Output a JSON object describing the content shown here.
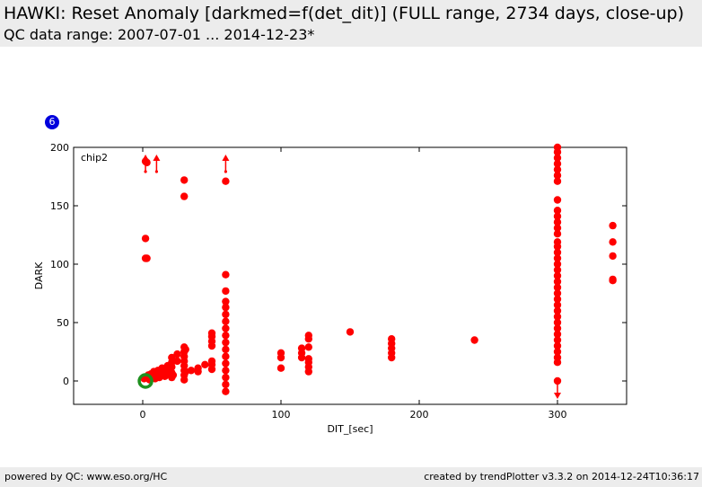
{
  "header": {
    "title": "HAWKI: Reset Anomaly [darkmed=f(det_dit)] (FULL range, 2734 days, close-up)",
    "subtitle": "QC data range: 2007-07-01 ... 2014-12-23*"
  },
  "badge": {
    "label": "6",
    "color": "#0000dd"
  },
  "footer": {
    "left": "powered by QC: www.eso.org/HC",
    "right": "created by trendPlotter v3.3.2 on 2014-12-24T10:36:17"
  },
  "chart_data": {
    "type": "scatter",
    "title": "",
    "xlabel": "DIT_[sec]",
    "ylabel": "DARK",
    "xlim": [
      -50,
      350
    ],
    "ylim": [
      -20,
      200
    ],
    "xticks": [
      0,
      100,
      200,
      300
    ],
    "yticks": [
      0,
      50,
      100,
      150,
      200
    ],
    "grid": false,
    "panel_label": "chip2",
    "colors": {
      "points": "#ff0000",
      "reference": "#1e8f1e"
    },
    "series": [
      {
        "points": [
          [
            2,
            122
          ],
          [
            2,
            105
          ],
          [
            3,
            105
          ],
          [
            2,
            188
          ],
          [
            3,
            187
          ],
          [
            1,
            2
          ],
          [
            3,
            3
          ],
          [
            4,
            5
          ],
          [
            5,
            1
          ],
          [
            6,
            6
          ],
          [
            7,
            4
          ],
          [
            8,
            8
          ],
          [
            9,
            2
          ],
          [
            10,
            6
          ],
          [
            11,
            9
          ],
          [
            12,
            3
          ],
          [
            13,
            7
          ],
          [
            14,
            11
          ],
          [
            15,
            5
          ],
          [
            16,
            4
          ],
          [
            17,
            8
          ],
          [
            18,
            13
          ],
          [
            19,
            6
          ],
          [
            20,
            10
          ],
          [
            21,
            3
          ],
          [
            21,
            7
          ],
          [
            21,
            12
          ],
          [
            21,
            16
          ],
          [
            21,
            20
          ],
          [
            22,
            5
          ],
          [
            25,
            17
          ],
          [
            25,
            23
          ],
          [
            30,
            1
          ],
          [
            30,
            5
          ],
          [
            30,
            9
          ],
          [
            30,
            13
          ],
          [
            30,
            17
          ],
          [
            30,
            21
          ],
          [
            30,
            25
          ],
          [
            30,
            29
          ],
          [
            30,
            158
          ],
          [
            30,
            172
          ],
          [
            31,
            8
          ],
          [
            31,
            27
          ],
          [
            35,
            9
          ],
          [
            40,
            8
          ],
          [
            40,
            11
          ],
          [
            45,
            14
          ],
          [
            50,
            10
          ],
          [
            50,
            14
          ],
          [
            50,
            17
          ],
          [
            50,
            30
          ],
          [
            50,
            34
          ],
          [
            50,
            38
          ],
          [
            50,
            41
          ],
          [
            60,
            -9
          ],
          [
            60,
            -3
          ],
          [
            60,
            3
          ],
          [
            60,
            9
          ],
          [
            60,
            15
          ],
          [
            60,
            21
          ],
          [
            60,
            27
          ],
          [
            60,
            33
          ],
          [
            60,
            39
          ],
          [
            60,
            45
          ],
          [
            60,
            51
          ],
          [
            60,
            57
          ],
          [
            60,
            63
          ],
          [
            60,
            68
          ],
          [
            60,
            77
          ],
          [
            60,
            91
          ],
          [
            60,
            171
          ],
          [
            100,
            11
          ],
          [
            100,
            20
          ],
          [
            100,
            24
          ],
          [
            115,
            20
          ],
          [
            115,
            24
          ],
          [
            115,
            28
          ],
          [
            120,
            8
          ],
          [
            120,
            12
          ],
          [
            120,
            16
          ],
          [
            120,
            19
          ],
          [
            120,
            29
          ],
          [
            120,
            36
          ],
          [
            120,
            39
          ],
          [
            150,
            42
          ],
          [
            180,
            20
          ],
          [
            180,
            24
          ],
          [
            180,
            28
          ],
          [
            180,
            32
          ],
          [
            180,
            36
          ],
          [
            240,
            35
          ],
          [
            300,
            0
          ],
          [
            300,
            16
          ],
          [
            300,
            20
          ],
          [
            300,
            25
          ],
          [
            300,
            30
          ],
          [
            300,
            35
          ],
          [
            300,
            40
          ],
          [
            300,
            45
          ],
          [
            300,
            50
          ],
          [
            300,
            55
          ],
          [
            300,
            60
          ],
          [
            300,
            65
          ],
          [
            300,
            70
          ],
          [
            300,
            75
          ],
          [
            300,
            80
          ],
          [
            300,
            85
          ],
          [
            300,
            90
          ],
          [
            300,
            95
          ],
          [
            300,
            100
          ],
          [
            300,
            105
          ],
          [
            300,
            110
          ],
          [
            300,
            115
          ],
          [
            300,
            119
          ],
          [
            300,
            126
          ],
          [
            300,
            131
          ],
          [
            300,
            136
          ],
          [
            300,
            141
          ],
          [
            300,
            146
          ],
          [
            300,
            155
          ],
          [
            300,
            171
          ],
          [
            300,
            176
          ],
          [
            300,
            181
          ],
          [
            300,
            186
          ],
          [
            300,
            191
          ],
          [
            300,
            196
          ],
          [
            300,
            200
          ],
          [
            340,
            86
          ],
          [
            340,
            87
          ],
          [
            340,
            107
          ],
          [
            340,
            119
          ],
          [
            340,
            133
          ]
        ]
      }
    ],
    "reference_point": [
      2,
      0
    ],
    "off_scale_markers": [
      {
        "x": 2,
        "direction": "up"
      },
      {
        "x": 10,
        "direction": "up"
      },
      {
        "x": 60,
        "direction": "up"
      },
      {
        "x": 300,
        "direction": "down"
      }
    ]
  }
}
